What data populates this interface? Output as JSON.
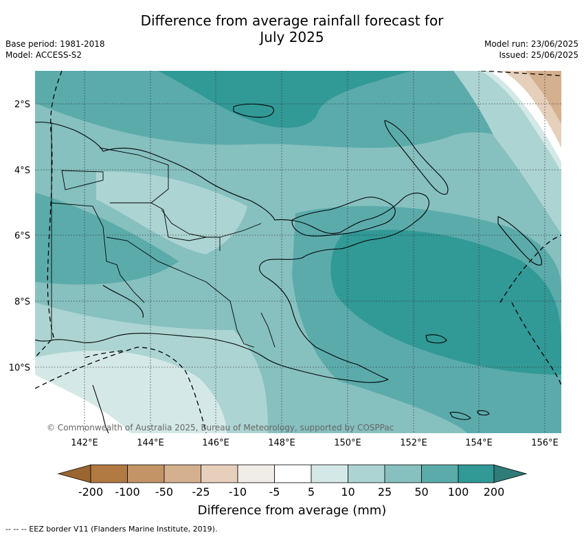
{
  "header": {
    "title_line1": "Difference from average rainfall forecast for",
    "title_line2": "July 2025",
    "base_period": "Base period: 1981-2018",
    "model": "Model: ACCESS-S2",
    "model_run": "Model run: 23/06/2025",
    "issued": "Issued: 25/06/2025"
  },
  "map": {
    "lat_labels": [
      "2°S",
      "4°S",
      "6°S",
      "8°S",
      "10°S"
    ],
    "lon_labels": [
      "142°E",
      "144°E",
      "146°E",
      "148°E",
      "150°E",
      "152°E",
      "154°E",
      "156°E"
    ],
    "copyright": "© Commonwealth of Australia 2025, Bureau of Meteorology, supported by COSPPac"
  },
  "colorbar": {
    "title": "Difference from average (mm)",
    "ticks": [
      "-200",
      "-100",
      "-50",
      "-25",
      "-10",
      "-5",
      "5",
      "10",
      "25",
      "50",
      "100",
      "200"
    ],
    "colors": {
      "extend_low": "#9a6530",
      "c1": "#b07a42",
      "c2": "#c39466",
      "c3": "#d4b08f",
      "c4": "#e6cfbb",
      "c5": "#f0ece8",
      "c6": "#ffffff",
      "c7": "#d4e9e7",
      "c8": "#acd4d2",
      "c9": "#86c0bf",
      "c10": "#5babab",
      "c11": "#319996",
      "extend_high": "#2f7c78"
    }
  },
  "legend_note": "--  --  -- EEZ border V11 (Flanders Marine Institute, 2019)."
}
